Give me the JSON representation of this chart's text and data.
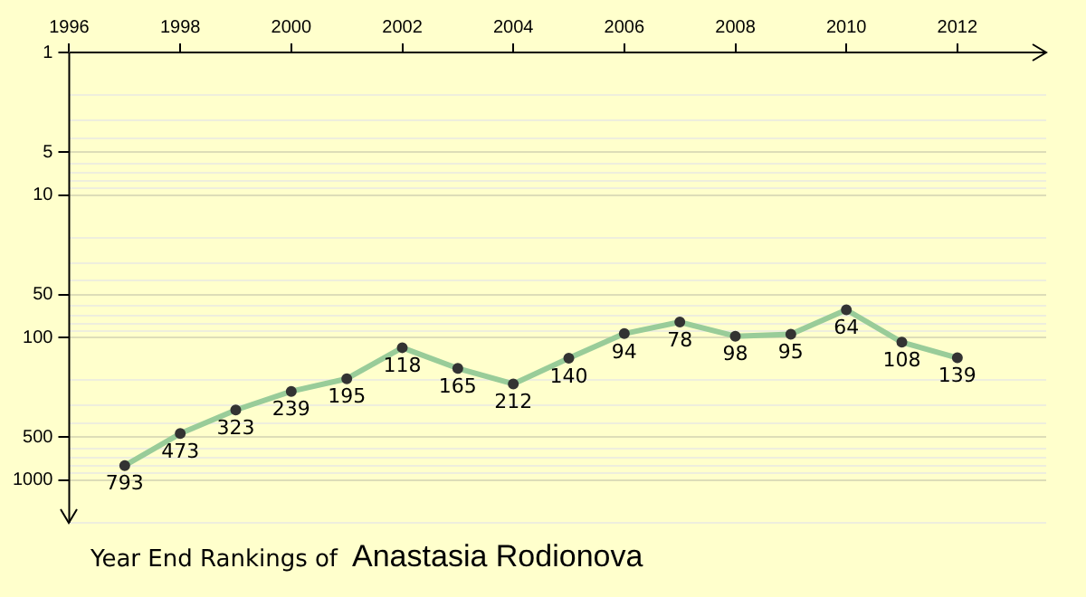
{
  "chart_data": {
    "type": "line",
    "title": "Year End Rankings of",
    "subtitle": "Anastasia Rodionova",
    "x": [
      1997,
      1998,
      1999,
      2000,
      2001,
      2002,
      2003,
      2004,
      2005,
      2006,
      2007,
      2008,
      2009,
      2010,
      2011,
      2012
    ],
    "series": [
      {
        "color": "#99cc99",
        "values": [
          793,
          473,
          323,
          239,
          195,
          118,
          165,
          212,
          140,
          94,
          78,
          98,
          95,
          64,
          108,
          139
        ]
      }
    ],
    "xlim": [
      1996,
      2013.6
    ],
    "xticks": [
      1996,
      1998,
      2000,
      2002,
      2004,
      2006,
      2008,
      2010,
      2012
    ],
    "ylim": [
      2000,
      1
    ],
    "log": "y",
    "yticks": [
      1,
      {
        "value": 2,
        "label": null
      },
      {
        "value": 3,
        "label": null
      },
      {
        "value": 4,
        "label": null
      },
      5,
      {
        "value": 6,
        "label": null
      },
      {
        "value": 7,
        "label": null
      },
      {
        "value": 8,
        "label": null
      },
      {
        "value": 9,
        "label": null
      },
      10,
      {
        "value": 20,
        "label": null
      },
      {
        "value": 30,
        "label": null
      },
      {
        "value": 40,
        "label": null
      },
      50,
      {
        "value": 60,
        "label": null
      },
      {
        "value": 70,
        "label": null
      },
      {
        "value": 80,
        "label": null
      },
      {
        "value": 90,
        "label": null
      },
      100,
      {
        "value": 200,
        "label": null
      },
      {
        "value": 300,
        "label": null
      },
      {
        "value": 400,
        "label": null
      },
      500,
      {
        "value": 600,
        "label": null
      },
      {
        "value": 700,
        "label": null
      },
      {
        "value": 800,
        "label": null
      },
      {
        "value": 900,
        "label": null
      },
      1000,
      {
        "value": 2000,
        "label": null
      }
    ],
    "grid": "y",
    "legend": false,
    "marker": "circle",
    "line_style": "solid",
    "data_labels": true
  }
}
